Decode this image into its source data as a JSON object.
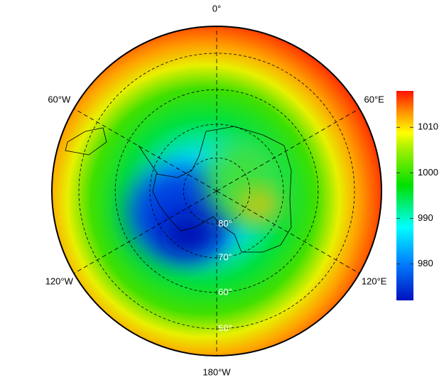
{
  "chart_data": {
    "type": "map",
    "meridians": [
      {
        "value": 0,
        "label": "0°"
      },
      {
        "value": 60,
        "label": "60°E"
      },
      {
        "value": 120,
        "label": "120°E"
      },
      {
        "value": 180,
        "label": "180°W"
      },
      {
        "value": -120,
        "label": "120°W"
      },
      {
        "value": -60,
        "label": "60°W"
      }
    ],
    "parallels": [
      {
        "value": 80,
        "label": "80°"
      },
      {
        "value": 70,
        "label": "70°"
      },
      {
        "value": 60,
        "label": "60°"
      },
      {
        "value": 50,
        "label": "50°"
      }
    ],
    "clim": [
      972,
      1018
    ],
    "cticks": [
      980,
      990,
      1000,
      1010
    ]
  }
}
